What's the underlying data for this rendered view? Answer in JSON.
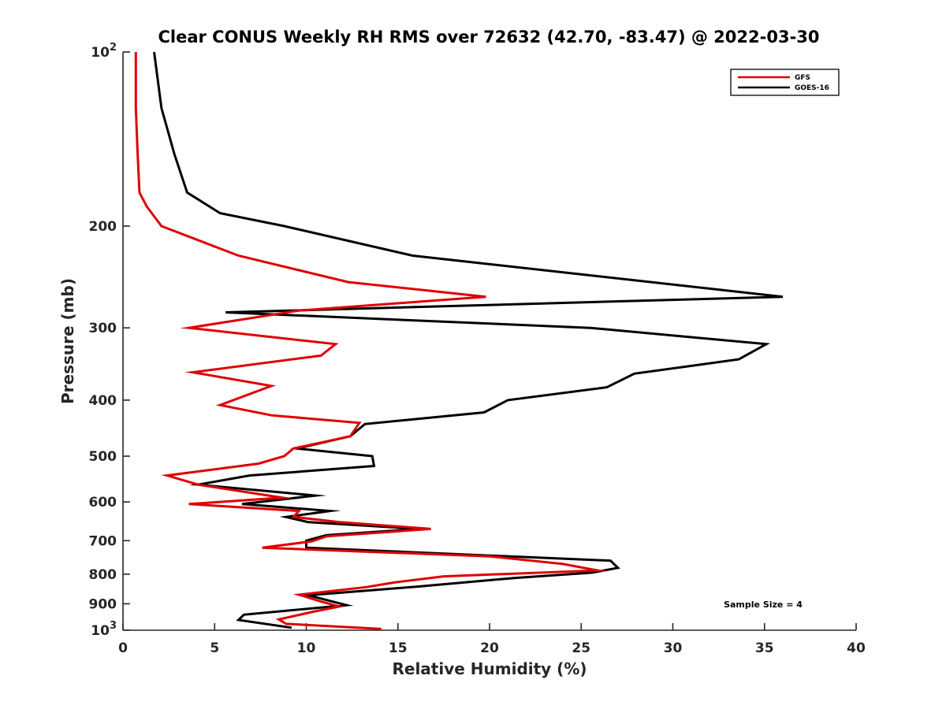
{
  "chart_data": {
    "type": "line",
    "title": "Clear CONUS Weekly RH RMS over 72632 (42.70, -83.47) @ 2022-03-30",
    "xlabel": "Relative Humidity (%)",
    "ylabel": "Pressure (mb)",
    "xlim": [
      0,
      40
    ],
    "ylim": [
      100,
      1000
    ],
    "y_scale": "log",
    "y_direction": "reversed",
    "x_ticks": [
      0,
      5,
      10,
      15,
      20,
      25,
      30,
      35,
      40
    ],
    "y_ticks": [
      100,
      200,
      300,
      400,
      500,
      600,
      700,
      800,
      900,
      1000
    ],
    "y_tick_labels": [
      {
        "base": "10",
        "exp": "2"
      },
      {
        "base": "200"
      },
      {
        "base": "300"
      },
      {
        "base": "400"
      },
      {
        "base": "500"
      },
      {
        "base": "600"
      },
      {
        "base": "700"
      },
      {
        "base": "800"
      },
      {
        "base": "900"
      },
      {
        "base": "10",
        "exp": "3"
      }
    ],
    "grid": false,
    "legend_position": "top-right",
    "annotation": "Sample Size = 4",
    "series": [
      {
        "name": "GFS",
        "color": "#e00000",
        "points": [
          [
            0.7,
            100
          ],
          [
            0.7,
            125
          ],
          [
            0.8,
            150
          ],
          [
            0.9,
            175
          ],
          [
            1.3,
            185
          ],
          [
            2.1,
            200
          ],
          [
            6.3,
            225
          ],
          [
            12.3,
            250
          ],
          [
            19.8,
            265
          ],
          [
            9.6,
            280
          ],
          [
            3.6,
            300
          ],
          [
            11.6,
            320
          ],
          [
            10.8,
            335
          ],
          [
            3.8,
            358
          ],
          [
            8.1,
            378
          ],
          [
            5.3,
            408
          ],
          [
            8.1,
            425
          ],
          [
            12.9,
            438
          ],
          [
            12.4,
            462
          ],
          [
            9.3,
            485
          ],
          [
            8.8,
            500
          ],
          [
            7.4,
            515
          ],
          [
            2.4,
            540
          ],
          [
            4.1,
            560
          ],
          [
            8.7,
            590
          ],
          [
            3.6,
            605
          ],
          [
            9.6,
            622
          ],
          [
            9.3,
            637
          ],
          [
            11.8,
            650
          ],
          [
            16.8,
            668
          ],
          [
            11.1,
            688
          ],
          [
            10.3,
            702
          ],
          [
            7.6,
            720
          ],
          [
            20.0,
            745
          ],
          [
            24.0,
            768
          ],
          [
            25.9,
            788
          ],
          [
            17.5,
            807
          ],
          [
            14.8,
            827
          ],
          [
            13.3,
            842
          ],
          [
            9.6,
            868
          ],
          [
            10.8,
            892
          ],
          [
            11.8,
            910
          ],
          [
            10.3,
            930
          ],
          [
            8.5,
            958
          ],
          [
            8.9,
            975
          ],
          [
            14.1,
            995
          ]
        ]
      },
      {
        "name": "GOES-16",
        "color": "#000000",
        "points": [
          [
            1.7,
            100
          ],
          [
            2.1,
            125
          ],
          [
            2.8,
            150
          ],
          [
            3.5,
            175
          ],
          [
            5.3,
            190
          ],
          [
            8.8,
            200
          ],
          [
            15.8,
            225
          ],
          [
            36.0,
            265
          ],
          [
            5.6,
            282
          ],
          [
            25.5,
            300
          ],
          [
            35.1,
            320
          ],
          [
            33.6,
            340
          ],
          [
            27.9,
            360
          ],
          [
            26.4,
            380
          ],
          [
            21.0,
            400
          ],
          [
            19.7,
            420
          ],
          [
            13.2,
            440
          ],
          [
            12.4,
            462
          ],
          [
            9.5,
            485
          ],
          [
            13.6,
            500
          ],
          [
            13.7,
            520
          ],
          [
            6.9,
            540
          ],
          [
            4.1,
            560
          ],
          [
            10.5,
            585
          ],
          [
            6.5,
            605
          ],
          [
            11.3,
            622
          ],
          [
            8.9,
            637
          ],
          [
            10.1,
            650
          ],
          [
            16.2,
            668
          ],
          [
            11.1,
            685
          ],
          [
            10.0,
            700
          ],
          [
            10.0,
            720
          ],
          [
            26.6,
            758
          ],
          [
            27.0,
            780
          ],
          [
            25.6,
            795
          ],
          [
            21.4,
            812
          ],
          [
            16.2,
            840
          ],
          [
            10.1,
            870
          ],
          [
            12.2,
            905
          ],
          [
            6.6,
            940
          ],
          [
            6.3,
            960
          ],
          [
            9.2,
            990
          ]
        ]
      }
    ]
  }
}
